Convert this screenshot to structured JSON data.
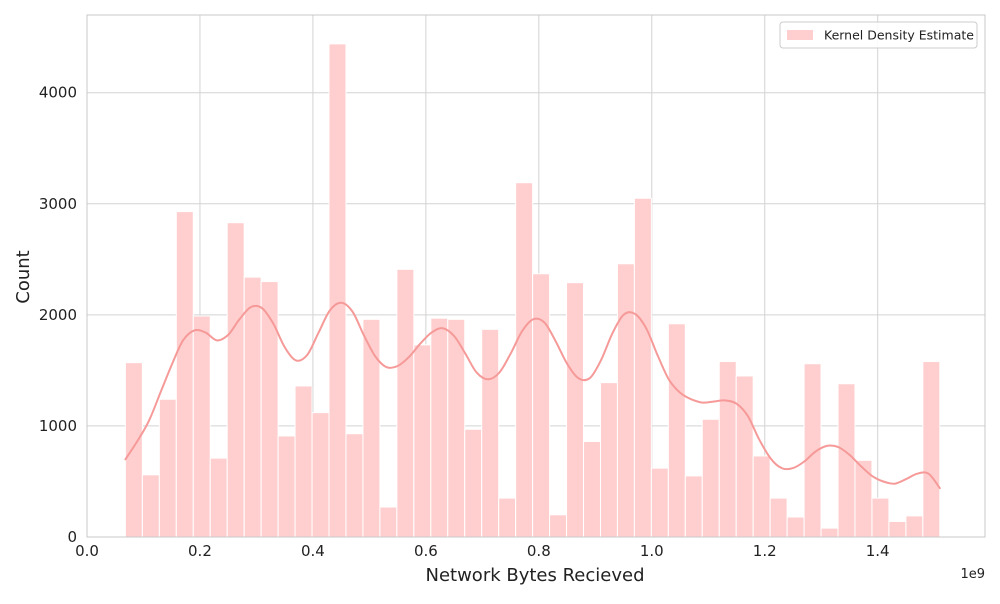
{
  "chart_data": {
    "type": "bar",
    "subtype": "histogram-with-kde",
    "title": "",
    "xlabel": "Network Bytes Recieved",
    "ylabel": "Count",
    "x_offset_label": "1e9",
    "xlim": [
      0.0,
      1.59
    ],
    "ylim": [
      0,
      4700
    ],
    "x_ticks": [
      0.0,
      0.2,
      0.4,
      0.6,
      0.8,
      1.0,
      1.2,
      1.4
    ],
    "x_tick_labels": [
      "0.0",
      "0.2",
      "0.4",
      "0.6",
      "0.8",
      "1.0",
      "1.2",
      "1.4"
    ],
    "y_ticks": [
      0,
      1000,
      2000,
      3000,
      4000
    ],
    "y_tick_labels": [
      "0",
      "1000",
      "2000",
      "3000",
      "4000"
    ],
    "grid": true,
    "legend": {
      "position": "top-right",
      "entries": [
        "Kernel Density Estimate"
      ]
    },
    "colors": {
      "bar_fill": "#ffcfcf",
      "bar_edge": "#ffffff",
      "kde_line": "#f59a98",
      "grid": "#d3d3d3",
      "axes_edge": "#c8c8c8"
    },
    "bins": {
      "start": 0.068,
      "end": 1.51,
      "counts": [
        1570,
        560,
        1240,
        2930,
        1990,
        710,
        2830,
        2340,
        2300,
        910,
        1360,
        1120,
        4440,
        930,
        1960,
        270,
        2410,
        1730,
        1970,
        1960,
        970,
        1870,
        350,
        3190,
        2370,
        200,
        2290,
        860,
        1390,
        2460,
        3050,
        620,
        1920,
        550,
        1060,
        1580,
        1450,
        730,
        350,
        180,
        1560,
        80,
        1380,
        690,
        350,
        140,
        190,
        1580
      ]
    },
    "kde": {
      "x": [
        0.068,
        0.09,
        0.11,
        0.13,
        0.15,
        0.17,
        0.19,
        0.21,
        0.23,
        0.25,
        0.27,
        0.29,
        0.31,
        0.33,
        0.35,
        0.37,
        0.39,
        0.41,
        0.43,
        0.45,
        0.47,
        0.49,
        0.51,
        0.53,
        0.55,
        0.57,
        0.59,
        0.61,
        0.63,
        0.65,
        0.67,
        0.69,
        0.71,
        0.73,
        0.75,
        0.77,
        0.79,
        0.81,
        0.83,
        0.85,
        0.87,
        0.89,
        0.91,
        0.93,
        0.95,
        0.97,
        0.99,
        1.01,
        1.03,
        1.05,
        1.07,
        1.09,
        1.11,
        1.13,
        1.15,
        1.17,
        1.19,
        1.21,
        1.23,
        1.25,
        1.27,
        1.29,
        1.31,
        1.33,
        1.35,
        1.37,
        1.39,
        1.41,
        1.43,
        1.45,
        1.47,
        1.49,
        1.51
      ],
      "y": [
        700,
        870,
        1050,
        1300,
        1550,
        1770,
        1860,
        1840,
        1770,
        1820,
        1960,
        2070,
        2060,
        1920,
        1710,
        1590,
        1640,
        1840,
        2040,
        2110,
        2030,
        1820,
        1630,
        1530,
        1540,
        1620,
        1740,
        1840,
        1880,
        1810,
        1650,
        1480,
        1420,
        1480,
        1650,
        1850,
        1960,
        1930,
        1760,
        1560,
        1430,
        1430,
        1590,
        1830,
        2000,
        2010,
        1880,
        1640,
        1420,
        1300,
        1240,
        1210,
        1220,
        1230,
        1200,
        1090,
        880,
        710,
        620,
        620,
        680,
        770,
        820,
        810,
        740,
        640,
        550,
        500,
        480,
        520,
        570,
        570,
        440
      ]
    }
  }
}
